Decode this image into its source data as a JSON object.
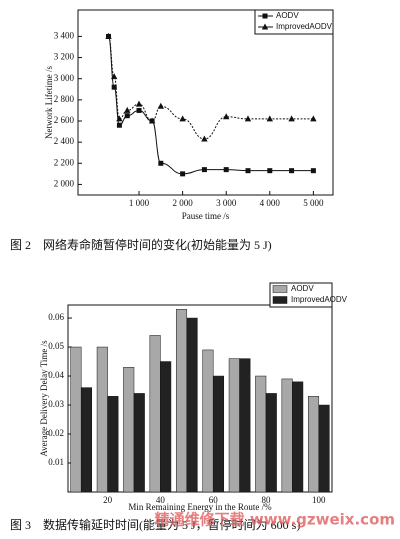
{
  "chart_data": [
    {
      "type": "line",
      "xlabel": "Pause time /s",
      "ylabel": "Network Lifetime /s",
      "caption": "图 2　网络寿命随暂停时间的变化(初始能量为 5 J)",
      "x": [
        300,
        430,
        550,
        730,
        1000,
        1300,
        1500,
        2000,
        2500,
        3000,
        3500,
        4000,
        4500,
        5000
      ],
      "series": [
        {
          "name": "AODV",
          "color": "#111111",
          "marker": "square",
          "values": [
            3400,
            2920,
            2560,
            2650,
            2700,
            2600,
            2200,
            2100,
            2140,
            2140,
            2130,
            2130,
            2130,
            2130
          ]
        },
        {
          "name": "ImprovedAODV",
          "color": "#111111",
          "marker": "triangle",
          "values": [
            3400,
            3020,
            2620,
            2700,
            2760,
            2600,
            2740,
            2620,
            2430,
            2640,
            2620,
            2620,
            2620,
            2620
          ]
        }
      ],
      "xlim": [
        -400,
        5450
      ],
      "ylim": [
        1900,
        3650
      ],
      "xticks": [
        {
          "value": 1000,
          "label": "1 000"
        },
        {
          "value": 2000,
          "label": "2 000"
        },
        {
          "value": 3000,
          "label": "3 000"
        },
        {
          "value": 4000,
          "label": "4 000"
        },
        {
          "value": 5000,
          "label": "5 000"
        }
      ],
      "yticks": [
        {
          "value": 2000,
          "label": "2 000"
        },
        {
          "value": 2200,
          "label": "2 200"
        },
        {
          "value": 2400,
          "label": "2 400"
        },
        {
          "value": 2600,
          "label": "2 600"
        },
        {
          "value": 2800,
          "label": "2 800"
        },
        {
          "value": 3000,
          "label": "3 000"
        },
        {
          "value": 3200,
          "label": "3 200"
        },
        {
          "value": 3400,
          "label": "3 400"
        }
      ],
      "legend": "top-right"
    },
    {
      "type": "bar",
      "xlabel": "Min Remaining Energy in the Route /%",
      "ylabel": "Average Delivery Delay Time /s",
      "caption": "图 3　数据传输延时时间(能量为 5 J，暂停时间为 600 s)",
      "categories": [
        null,
        20,
        null,
        40,
        null,
        60,
        null,
        80,
        null,
        100
      ],
      "series": [
        {
          "name": "AODV",
          "color": "#a8a8a8",
          "values": [
            0.05,
            0.05,
            0.043,
            0.054,
            0.063,
            0.049,
            0.046,
            0.04,
            0.039,
            0.033
          ]
        },
        {
          "name": "ImprovedAODV",
          "color": "#222222",
          "values": [
            0.036,
            0.033,
            0.034,
            0.045,
            0.06,
            0.04,
            0.046,
            0.034,
            0.038,
            0.03
          ]
        }
      ],
      "ylim": [
        0,
        0.0645
      ],
      "yticks": [
        0.01,
        0.02,
        0.03,
        0.04,
        0.05,
        0.06
      ],
      "legend": "top-right"
    }
  ],
  "watermark": "精通维修下载 www.gzweix.com"
}
